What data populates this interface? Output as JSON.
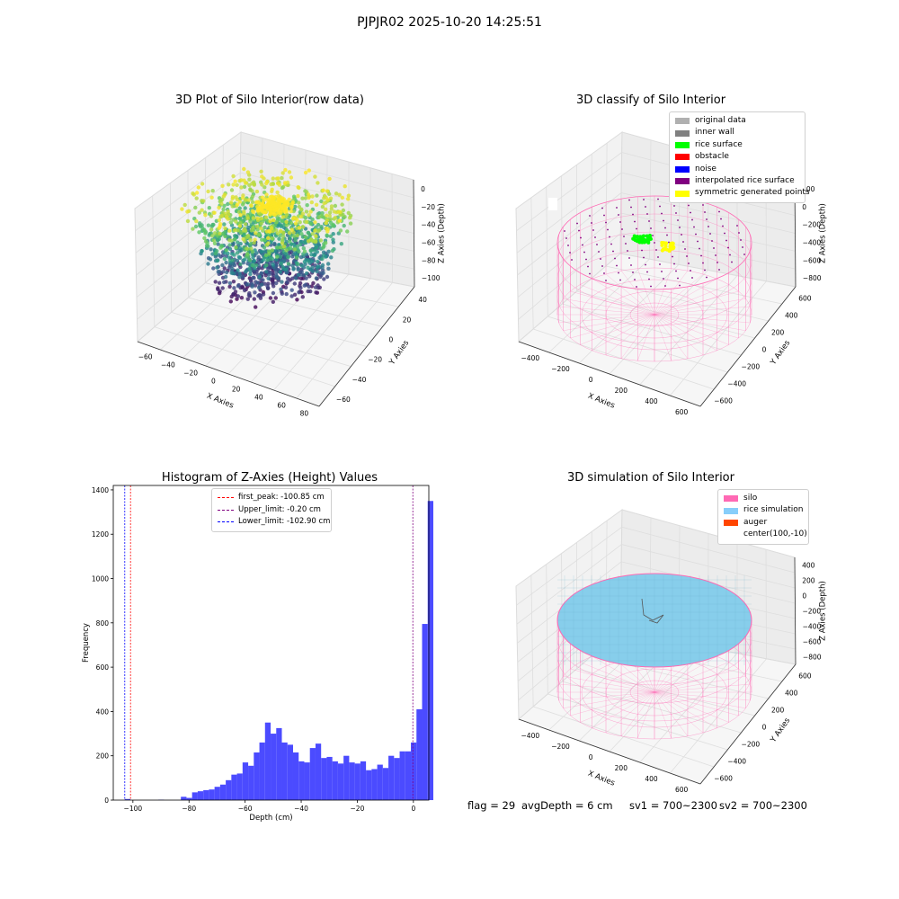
{
  "suptitle": "PJPJR02 2025-10-20 14:25:51",
  "colors": {
    "silo": "#ff69b4",
    "rice_simulation": "#87cefa",
    "auger": "#ff4500",
    "original_data": "#b0b0b0",
    "inner_wall": "#808080",
    "rice_surface": "#00ff00",
    "obstacle": "#ff0000",
    "noise": "#0000ff",
    "interpolated_rice_surface": "#800080",
    "symmetric_generated_points": "#ffff00",
    "hist_bar": "#4b4bff"
  },
  "chart_data": [
    {
      "type": "scatter",
      "title": "3D Plot of Silo Interior(row data)",
      "xlabel": "X Axies",
      "ylabel": "Y Axies",
      "zlabel": "Z Axies (Depth)",
      "xticks": [
        "−60",
        "−40",
        "−20",
        "0",
        "20",
        "40",
        "60",
        "80"
      ],
      "yticks": [
        "−60",
        "−40",
        "−20",
        "0",
        "20",
        "40"
      ],
      "zticks": [
        "0",
        "−20",
        "−40",
        "−60",
        "−80",
        "−100"
      ],
      "xlim": [
        -70,
        85
      ],
      "ylim": [
        -65,
        55
      ],
      "zlim": [
        -110,
        5
      ],
      "colormap": "viridis"
    },
    {
      "type": "scatter",
      "title": "3D classify of Silo Interior",
      "xlabel": "X Axies",
      "ylabel": "Y Axies",
      "zlabel": "Z Axies (Depth)",
      "xticks": [
        "−400",
        "−200",
        "0",
        "200",
        "400",
        "600"
      ],
      "yticks": [
        "−600",
        "−400",
        "−200",
        "0",
        "200",
        "400",
        "600"
      ],
      "zticks": [
        "200",
        "0",
        "−200",
        "−400",
        "−600",
        "−800"
      ],
      "zticks_partial": "00",
      "legend": [
        "original data",
        "inner wall",
        "rice surface",
        "obstacle",
        "noise",
        "interpolated rice surface",
        "symmetric generated points"
      ],
      "legend_position": "upper right"
    },
    {
      "type": "bar",
      "title": "Histogram of Z-Axies (Height) Values",
      "xlabel": "Depth (cm)",
      "ylabel": "Frequency",
      "xlim": [
        -107,
        5.5
      ],
      "ylim": [
        0,
        1420
      ],
      "xticks": [
        -100,
        -80,
        -60,
        -40,
        -20,
        0
      ],
      "yticks": [
        0,
        200,
        400,
        600,
        800,
        1000,
        1200,
        1400
      ],
      "bin_start": -102.9,
      "bin_width": 2.0,
      "values": [
        5,
        0,
        0,
        0,
        0,
        0,
        2,
        0,
        0,
        0,
        15,
        10,
        35,
        40,
        45,
        48,
        60,
        70,
        90,
        115,
        120,
        170,
        155,
        215,
        260,
        350,
        300,
        325,
        260,
        250,
        215,
        175,
        170,
        235,
        255,
        190,
        195,
        175,
        165,
        200,
        170,
        165,
        175,
        135,
        140,
        160,
        145,
        200,
        190,
        220,
        220,
        260,
        410,
        795,
        1350
      ],
      "vlines": [
        {
          "label": "first_peak: -100.85 cm",
          "x": -100.85,
          "color": "#ff0000"
        },
        {
          "label": "Upper_limit: -0.20 cm",
          "x": -0.2,
          "color": "#800080"
        },
        {
          "label": "Lower_limit: -102.90 cm",
          "x": -102.9,
          "color": "#0000ff"
        }
      ],
      "legend_position": "upper center"
    },
    {
      "type": "scatter",
      "title": "3D simulation of Silo Interior",
      "xlabel": "X Axies",
      "ylabel": "Y Axies",
      "zlabel": "Z Axies (Depth)",
      "xticks": [
        "−400",
        "−200",
        "0",
        "200",
        "400",
        "600"
      ],
      "yticks": [
        "−600",
        "−400",
        "−200",
        "0",
        "200",
        "400",
        "600"
      ],
      "zticks": [
        "400",
        "200",
        "0",
        "−200",
        "−400",
        "−600",
        "−800"
      ],
      "legend": [
        "silo",
        "rice simulation",
        "auger",
        "center(100,-10)"
      ],
      "legend_position": "upper right"
    }
  ],
  "footer": {
    "flag": "flag = 29",
    "avg_depth": "avgDepth = 6 cm",
    "sv1": "sv1 = 700~2300",
    "sv2": "sv2 = 700~2300"
  }
}
